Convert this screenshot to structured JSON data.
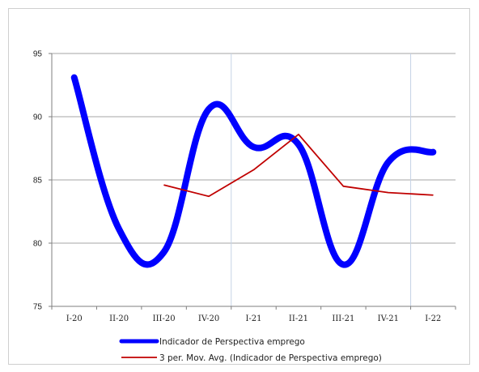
{
  "chart_data": {
    "type": "line",
    "categories": [
      "I-20",
      "II-20",
      "III-20",
      "IV-20",
      "I-21",
      "II-21",
      "III-21",
      "IV-21",
      "I-22"
    ],
    "ylim": [
      75,
      95
    ],
    "yticks": [
      75,
      80,
      85,
      90,
      95
    ],
    "grid": true,
    "legend_position": "bottom",
    "series": [
      {
        "name": "Indicador de Perspectiva emprego",
        "color": "#0000ff",
        "values": [
          93.1,
          81.1,
          79.3,
          90.6,
          87.6,
          87.8,
          78.3,
          86.4,
          87.2
        ]
      },
      {
        "name": "3 per. Mov. Avg. (Indicador de Perspectiva emprego)",
        "color": "#c00000",
        "values": [
          null,
          null,
          84.6,
          83.7,
          85.8,
          88.6,
          84.5,
          84.0,
          83.8
        ]
      }
    ]
  }
}
